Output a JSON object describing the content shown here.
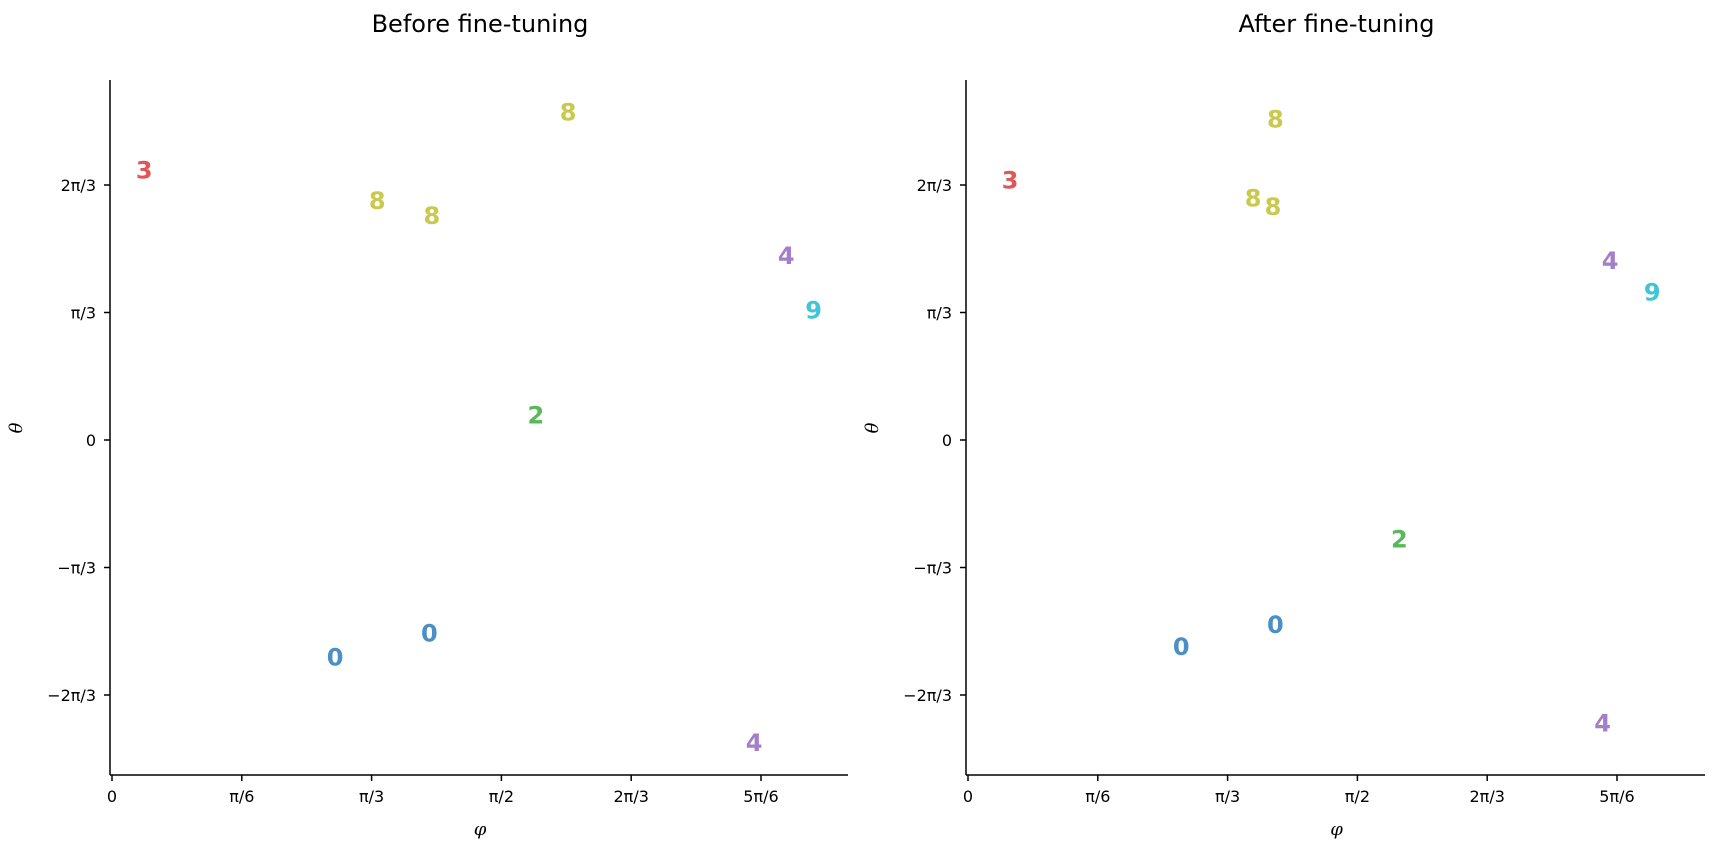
{
  "chart_data": [
    {
      "type": "scatter",
      "title": "Before fine-tuning",
      "xlabel": "φ",
      "ylabel": "θ",
      "xlim": [
        0,
        2.82
      ],
      "ylim": [
        -2.55,
        2.75
      ],
      "xticks": [
        {
          "value": 0,
          "label": "0"
        },
        {
          "value": 0.5236,
          "label": "π/6"
        },
        {
          "value": 1.0472,
          "label": "π/3"
        },
        {
          "value": 1.5708,
          "label": "π/2"
        },
        {
          "value": 2.0944,
          "label": "2π/3"
        },
        {
          "value": 2.618,
          "label": "5π/6"
        }
      ],
      "yticks": [
        {
          "value": 2.0944,
          "label": "2π/3"
        },
        {
          "value": 1.0472,
          "label": "π/3"
        },
        {
          "value": 0,
          "label": "0"
        },
        {
          "value": -1.0472,
          "label": "−π/3"
        },
        {
          "value": -2.0944,
          "label": "−2π/3"
        }
      ],
      "points": [
        {
          "x": 0.13,
          "y": 2.22,
          "label": "3",
          "color": "#e15759"
        },
        {
          "x": 1.07,
          "y": 1.97,
          "label": "8",
          "color": "#c9c94d"
        },
        {
          "x": 1.29,
          "y": 1.85,
          "label": "8",
          "color": "#c9c94d"
        },
        {
          "x": 1.84,
          "y": 2.7,
          "label": "8",
          "color": "#c9c94d"
        },
        {
          "x": 2.72,
          "y": 1.52,
          "label": "4",
          "color": "#a47fc8"
        },
        {
          "x": 2.83,
          "y": 1.07,
          "label": "9",
          "color": "#3fc6d6"
        },
        {
          "x": 1.71,
          "y": 0.21,
          "label": "2",
          "color": "#59b85a"
        },
        {
          "x": 1.28,
          "y": -1.58,
          "label": "0",
          "color": "#4c8fc4"
        },
        {
          "x": 0.9,
          "y": -1.78,
          "label": "0",
          "color": "#4c8fc4"
        },
        {
          "x": 2.59,
          "y": -2.48,
          "label": "4",
          "color": "#a47fc8"
        }
      ]
    },
    {
      "type": "scatter",
      "title": "After fine-tuning",
      "xlabel": "φ",
      "ylabel": "θ",
      "xlim": [
        0,
        2.82
      ],
      "ylim": [
        -2.55,
        2.75
      ],
      "xticks": [
        {
          "value": 0,
          "label": "0"
        },
        {
          "value": 0.5236,
          "label": "π/6"
        },
        {
          "value": 1.0472,
          "label": "π/3"
        },
        {
          "value": 1.5708,
          "label": "π/2"
        },
        {
          "value": 2.0944,
          "label": "2π/3"
        },
        {
          "value": 2.618,
          "label": "5π/6"
        }
      ],
      "yticks": [
        {
          "value": 2.0944,
          "label": "2π/3"
        },
        {
          "value": 1.0472,
          "label": "π/3"
        },
        {
          "value": 0,
          "label": "0"
        },
        {
          "value": -1.0472,
          "label": "−π/3"
        },
        {
          "value": -2.0944,
          "label": "−2π/3"
        }
      ],
      "points": [
        {
          "x": 0.17,
          "y": 2.14,
          "label": "3",
          "color": "#e15759"
        },
        {
          "x": 1.24,
          "y": 2.64,
          "label": "8",
          "color": "#c9c94d"
        },
        {
          "x": 1.15,
          "y": 1.99,
          "label": "8",
          "color": "#c9c94d"
        },
        {
          "x": 1.23,
          "y": 1.92,
          "label": "8",
          "color": "#c9c94d"
        },
        {
          "x": 2.59,
          "y": 1.48,
          "label": "4",
          "color": "#a47fc8"
        },
        {
          "x": 2.76,
          "y": 1.22,
          "label": "9",
          "color": "#3fc6d6"
        },
        {
          "x": 1.74,
          "y": -0.81,
          "label": "2",
          "color": "#59b85a"
        },
        {
          "x": 1.24,
          "y": -1.51,
          "label": "0",
          "color": "#4c8fc4"
        },
        {
          "x": 0.86,
          "y": -1.69,
          "label": "0",
          "color": "#4c8fc4"
        },
        {
          "x": 2.56,
          "y": -2.32,
          "label": "4",
          "color": "#a47fc8"
        }
      ]
    }
  ]
}
